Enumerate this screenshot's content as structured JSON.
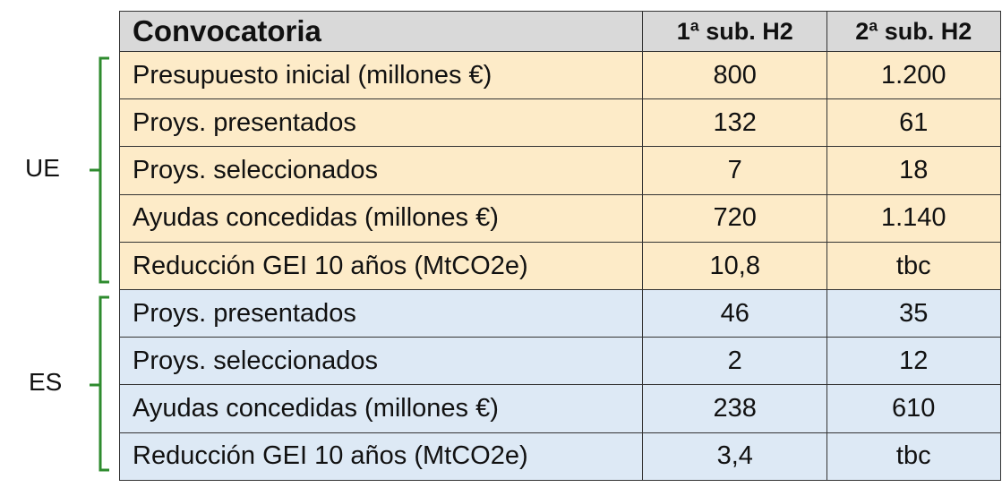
{
  "table": {
    "header": [
      "Convocatoria",
      "1ª sub. H2",
      "2ª sub. H2"
    ],
    "groups": [
      {
        "label": "UE",
        "rows": [
          [
            "Presupuesto inicial (millones €)",
            "800",
            "1.200"
          ],
          [
            "Proys. presentados",
            "132",
            "61"
          ],
          [
            "Proys. seleccionados",
            "7",
            "18"
          ],
          [
            "Ayudas concedidas (millones €)",
            "720",
            "1.140"
          ],
          [
            "Reducción GEI 10 años (MtCO2e)",
            "10,8",
            "tbc"
          ]
        ]
      },
      {
        "label": "ES",
        "rows": [
          [
            "Proys. presentados",
            "46",
            "35"
          ],
          [
            "Proys. seleccionados",
            "2",
            "12"
          ],
          [
            "Ayudas concedidas (millones €)",
            "238",
            "610"
          ],
          [
            "Reducción GEI 10 años (MtCO2e)",
            "3,4",
            "tbc"
          ]
        ]
      }
    ]
  }
}
